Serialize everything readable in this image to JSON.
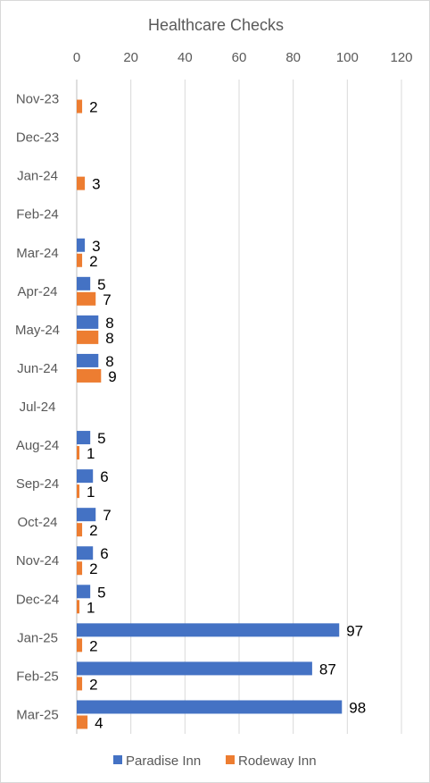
{
  "chart_data": {
    "type": "bar",
    "orientation": "horizontal",
    "title": "Healthcare Checks",
    "categories": [
      "Nov-23",
      "Dec-23",
      "Jan-24",
      "Feb-24",
      "Mar-24",
      "Apr-24",
      "May-24",
      "Jun-24",
      "Jul-24",
      "Aug-24",
      "Sep-24",
      "Oct-24",
      "Nov-24",
      "Dec-24",
      "Jan-25",
      "Feb-25",
      "Mar-25"
    ],
    "series": [
      {
        "name": "Paradise Inn",
        "color": "#4472C4",
        "values": [
          null,
          null,
          null,
          null,
          3,
          5,
          8,
          8,
          null,
          5,
          6,
          7,
          6,
          5,
          97,
          87,
          98
        ]
      },
      {
        "name": "Rodeway Inn",
        "color": "#ED7D31",
        "values": [
          2,
          null,
          3,
          null,
          2,
          7,
          8,
          9,
          null,
          1,
          1,
          2,
          2,
          1,
          2,
          2,
          4
        ]
      }
    ],
    "xlim": [
      0,
      120
    ],
    "xticks": [
      0,
      20,
      40,
      60,
      80,
      100,
      120
    ],
    "xaxis_position": "top",
    "grid": true,
    "legend_position": "bottom"
  }
}
